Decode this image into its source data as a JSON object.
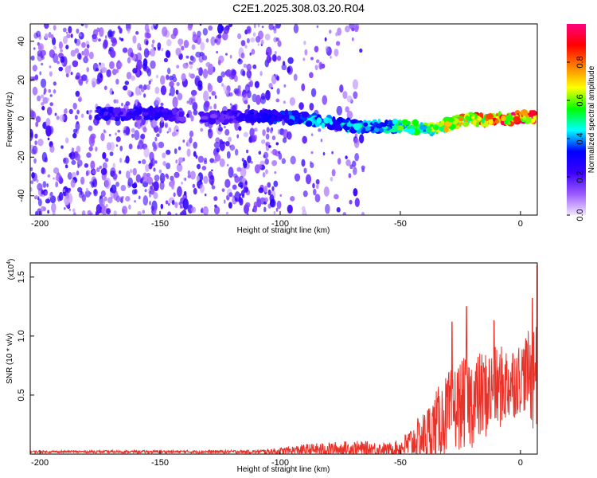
{
  "page_title": "C2E1.2025.308.03.20.R04",
  "colors": {
    "snr_line": "#e8332a",
    "axis": "#000000",
    "colormap_stops": [
      "#f2e6ff",
      "#9b59ff",
      "#3a00ff",
      "#0000ff",
      "#00ffff",
      "#00ff00",
      "#ffff00",
      "#ff8000",
      "#ff0000",
      "#ff0080"
    ]
  },
  "chart_data": [
    {
      "type": "heatmap",
      "title": "",
      "xlabel": "Height of straight line (km)",
      "ylabel": "Frequency (Hz)",
      "xlim": [
        -204,
        7
      ],
      "ylim": [
        -50,
        49
      ],
      "x_ticks": [
        -200,
        -150,
        -100,
        -50,
        0
      ],
      "y_ticks": [
        -40,
        -20,
        0,
        20,
        40
      ],
      "x_tick_labels": [
        "-200",
        "-150",
        "-100",
        "-50",
        "0"
      ],
      "y_tick_labels": [
        "-40",
        "-20",
        "0",
        "20",
        "40"
      ],
      "colorbar": {
        "label": "Normalized spectral amplitude",
        "range": [
          0,
          1
        ],
        "ticks": [
          0.0,
          0.2,
          0.4,
          0.6,
          0.8
        ],
        "tick_labels": [
          "0.0",
          "0.2",
          "0.4",
          "0.6",
          "0.8"
        ]
      },
      "ridge": {
        "x": [
          -176,
          -165,
          -150,
          -140,
          -130,
          -120,
          -110,
          -100,
          -90,
          -80,
          -70,
          -60,
          -50,
          -40,
          -35,
          -30,
          -25,
          -20,
          -15,
          -10,
          -5,
          0,
          7
        ],
        "freq": [
          3,
          2,
          3,
          1,
          0,
          1,
          1,
          1,
          0,
          -2,
          -4,
          -4,
          -4,
          -5,
          -5,
          -3,
          -1,
          0,
          -1,
          0,
          0,
          1,
          1
        ],
        "amplitude": [
          0.3,
          0.25,
          0.3,
          0.2,
          0.22,
          0.25,
          0.3,
          0.35,
          0.4,
          0.42,
          0.45,
          0.45,
          0.55,
          0.6,
          0.62,
          0.7,
          0.75,
          0.8,
          0.85,
          0.9,
          0.92,
          0.95,
          0.98
        ]
      },
      "noise_region_x": [
        -204,
        -100
      ]
    },
    {
      "type": "line",
      "title": "",
      "xlabel": "Height of straight line (km)",
      "ylabel": "SNR (10 * v/v)",
      "y_multiplier_label": "(x10",
      "y_multiplier_exp": "4",
      "y_multiplier_close": ")",
      "xlim": [
        -204,
        7
      ],
      "ylim": [
        0,
        1.62
      ],
      "x_ticks": [
        -200,
        -150,
        -100,
        -50,
        0
      ],
      "x_tick_labels": [
        "-200",
        "-150",
        "-100",
        "-50",
        "0"
      ],
      "y_ticks": [
        0.5,
        1.0,
        1.5
      ],
      "y_tick_labels": [
        "0.5",
        "1.0",
        "1.5"
      ],
      "envelope": {
        "x": [
          -204,
          -150,
          -110,
          -100,
          -90,
          -80,
          -70,
          -60,
          -55,
          -50,
          -45,
          -40,
          -35,
          -30,
          -25,
          -20,
          -15,
          -10,
          -5,
          0,
          3,
          5,
          7
        ],
        "base": [
          0.02,
          0.02,
          0.02,
          0.025,
          0.035,
          0.04,
          0.045,
          0.045,
          0.04,
          0.05,
          0.1,
          0.15,
          0.25,
          0.35,
          0.42,
          0.45,
          0.5,
          0.55,
          0.6,
          0.65,
          0.7,
          0.6,
          0.9
        ],
        "amp": [
          0.01,
          0.012,
          0.015,
          0.03,
          0.05,
          0.06,
          0.07,
          0.06,
          0.05,
          0.08,
          0.15,
          0.22,
          0.3,
          0.35,
          0.38,
          0.4,
          0.38,
          0.36,
          0.34,
          0.3,
          0.35,
          0.4,
          0.7
        ]
      },
      "peaks": [
        {
          "x": -22.5,
          "y": 1.25
        },
        {
          "x": -28.5,
          "y": 1.12
        },
        {
          "x": 5,
          "y": 1.32
        },
        {
          "x": 7,
          "y": 1.6
        },
        {
          "x": -11,
          "y": 1.13
        }
      ]
    }
  ]
}
